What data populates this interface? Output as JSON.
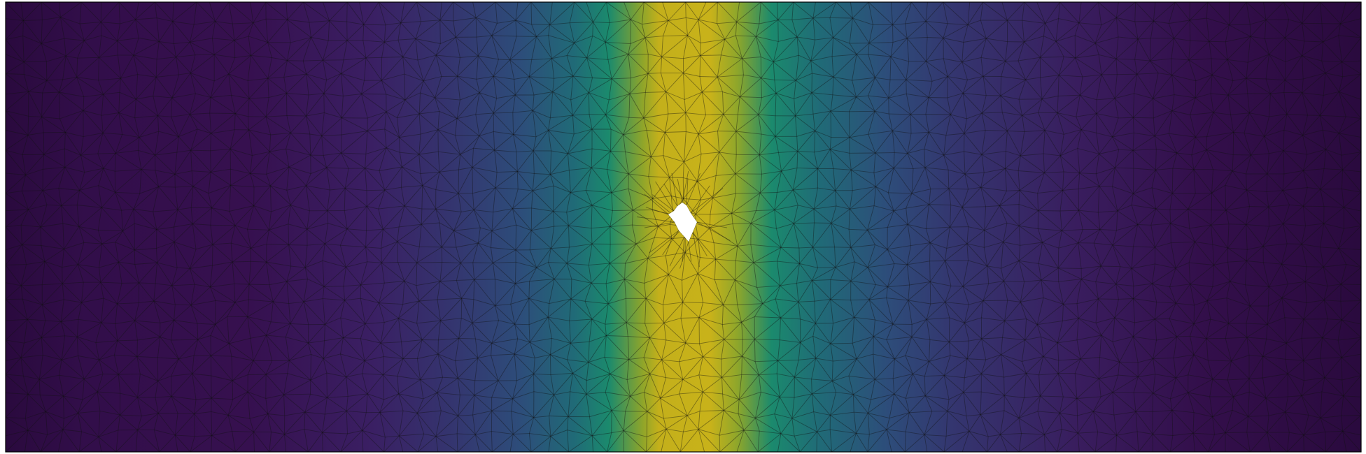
{
  "figure": {
    "kind": "finite-element mesh field plot",
    "colormap": "viridis",
    "background_color": "#ffffff",
    "frame_color": "#000000",
    "mesh_line_color": "#111111",
    "hole_color": "#ffffff",
    "colorbar_visible": false,
    "axes_visible": false
  }
}
